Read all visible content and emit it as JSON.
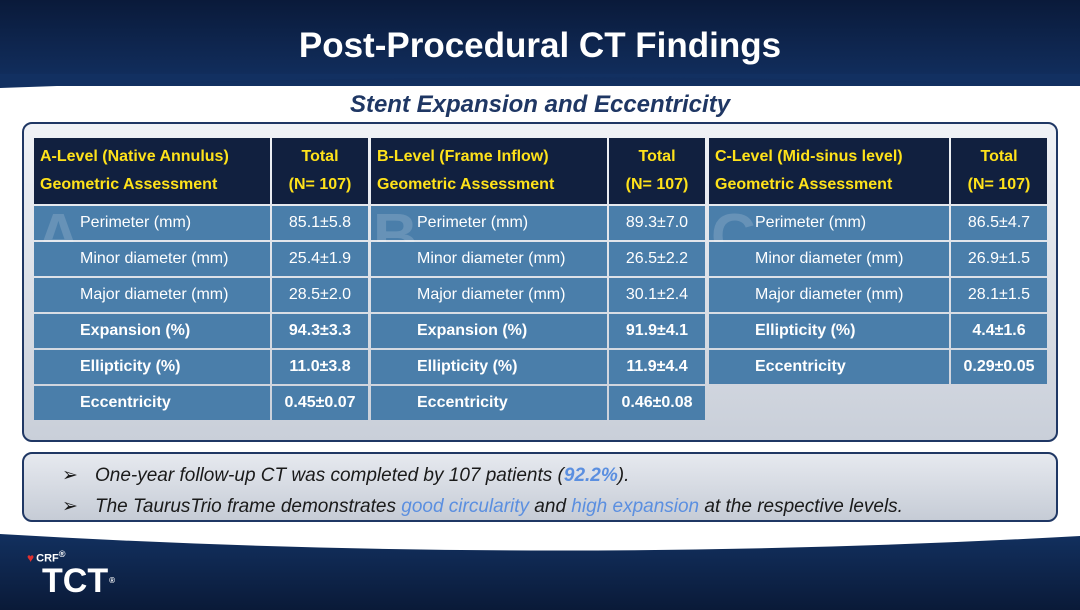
{
  "slide": {
    "title": "Post-Procedural CT Findings",
    "subtitle": "Stent Expansion and Eccentricity"
  },
  "tables": [
    {
      "watermark": "A",
      "header_label_line1": "A-Level (Native Annulus)",
      "header_label_line2": "Geometric Assessment",
      "header_value_line1": "Total",
      "header_value_line2": "(N= 107)",
      "rows": [
        {
          "label": "Perimeter (mm)",
          "value": "85.1±5.8"
        },
        {
          "label": "Minor diameter (mm)",
          "value": "25.4±1.9"
        },
        {
          "label": "Major diameter (mm)",
          "value": "28.5±2.0"
        },
        {
          "label": "Expansion (%)",
          "value": "94.3±3.3"
        },
        {
          "label": "Ellipticity (%)",
          "value": "11.0±3.8"
        },
        {
          "label": "Eccentricity",
          "value": "0.45±0.07"
        }
      ]
    },
    {
      "watermark": "B",
      "header_label_line1": "B-Level (Frame Inflow)",
      "header_label_line2": "Geometric Assessment",
      "header_value_line1": "Total",
      "header_value_line2": "(N= 107)",
      "rows": [
        {
          "label": "Perimeter (mm)",
          "value": "89.3±7.0"
        },
        {
          "label": "Minor diameter (mm)",
          "value": "26.5±2.2"
        },
        {
          "label": "Major diameter (mm)",
          "value": "30.1±2.4"
        },
        {
          "label": "Expansion (%)",
          "value": "91.9±4.1"
        },
        {
          "label": "Ellipticity (%)",
          "value": "11.9±4.4"
        },
        {
          "label": "Eccentricity",
          "value": "0.46±0.08"
        }
      ]
    },
    {
      "watermark": "C",
      "header_label_line1": "C-Level (Mid-sinus level)",
      "header_label_line2": "Geometric Assessment",
      "header_value_line1": "Total",
      "header_value_line2": "(N= 107)",
      "rows": [
        {
          "label": "Perimeter (mm)",
          "value": "86.5±4.7"
        },
        {
          "label": "Minor diameter (mm)",
          "value": "26.9±1.5"
        },
        {
          "label": "Major diameter (mm)",
          "value": "28.1±1.5"
        },
        {
          "label": "Ellipticity (%)",
          "value": "4.4±1.6"
        },
        {
          "label": "Eccentricity",
          "value": "0.29±0.05"
        }
      ]
    }
  ],
  "notes": {
    "bullet_icon": "arrow-right-icon",
    "bullet": "➢",
    "note1_a": "One-year follow-up CT was completed by 107 patients (",
    "note1_b": "92.2%",
    "note1_c": ").",
    "note2_a": "The TaurusTrio frame demonstrates ",
    "note2_b": "good circularity",
    "note2_c": " and ",
    "note2_d": "high expansion",
    "note2_e": " at the respective levels."
  },
  "logo": {
    "crf": "CRF",
    "crf_mark": "®",
    "tct": "TCT",
    "tct_mark": "®"
  },
  "colors": {
    "title_bar": "#0a1a3a",
    "header_cell": "#11203f",
    "header_text": "#ffe21a",
    "body_cell": "#4a7eaa",
    "highlight": "#5b8fe0"
  }
}
